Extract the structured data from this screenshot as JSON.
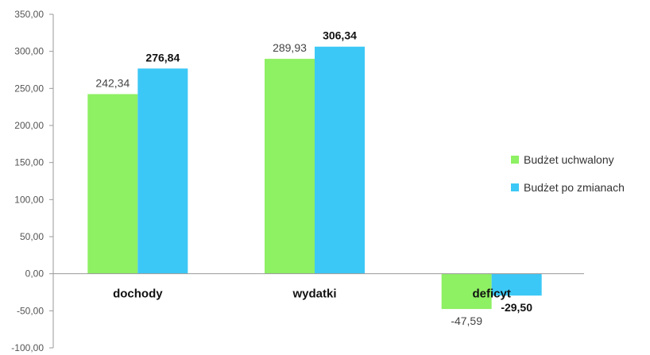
{
  "chart_data": {
    "type": "bar",
    "title": "",
    "xlabel": "",
    "ylabel": "",
    "ylim": [
      -100,
      350
    ],
    "yticks": [
      350,
      300,
      250,
      200,
      150,
      100,
      50,
      0,
      -50,
      -100
    ],
    "ytick_labels": [
      "350,00",
      "300,00",
      "250,00",
      "200,00",
      "150,00",
      "100,00",
      "50,00",
      "0,00",
      "-50,00",
      "-100,00"
    ],
    "grid": false,
    "legend_position": "right",
    "categories": [
      "dochody",
      "wydatki",
      "deficyt"
    ],
    "series": [
      {
        "name": "Budżet uchwalony",
        "color": "#8EF063",
        "values": [
          242.34,
          289.93,
          -47.59
        ],
        "labels": [
          "242,34",
          "289,93",
          "-47,59"
        ],
        "label_bold": false
      },
      {
        "name": "Budżet po zmianach",
        "color": "#3CC8F6",
        "values": [
          276.84,
          306.34,
          -29.5
        ],
        "labels": [
          "276,84",
          "306,34",
          "-29,50"
        ],
        "label_bold": true
      }
    ]
  }
}
